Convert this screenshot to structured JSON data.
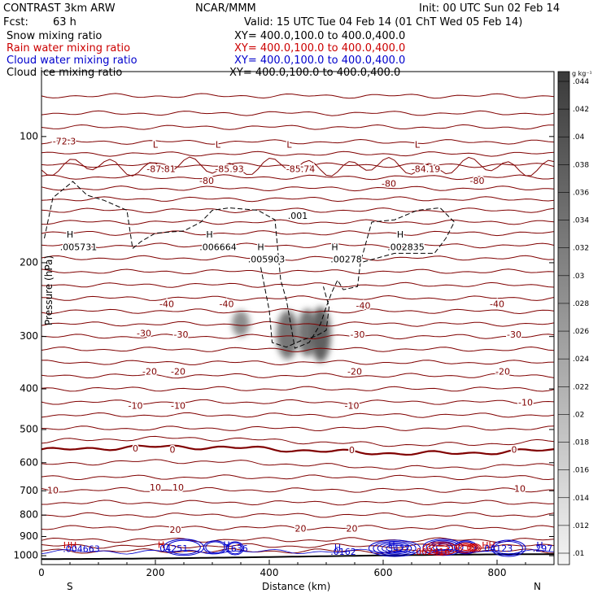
{
  "header": {
    "model": "CONTRAST  3km ARW",
    "org": "NCAR/MMM",
    "init": "Init: 00 UTC Sun 02 Feb 14",
    "fcst_label": "Fcst:",
    "fcst_value": "63 h",
    "valid": "Valid: 15 UTC Tue 04 Feb 14 (01 ChT Wed 05 Feb 14)"
  },
  "fields": [
    {
      "label": "Snow mixing ratio",
      "xy": "XY= 400.0,100.0 to 400.0,400.0",
      "color": "#000000"
    },
    {
      "label": "Rain water mixing ratio",
      "xy": "XY= 400.0,100.0 to 400.0,400.0",
      "color": "#cc0000"
    },
    {
      "label": "Cloud water mixing ratio",
      "xy": "XY= 400.0,100.0 to 400.0,400.0",
      "color": "#0000cc"
    },
    {
      "label": "Cloud ice mixing ratio",
      "xy": "XY= 400.0,100.0 to 400.0,400.0",
      "color": "#000000"
    }
  ],
  "colors": {
    "temperature": "#800000",
    "cloud_water": "#0000cc",
    "rain": "#cc0000",
    "cloud_ice": "#000000"
  },
  "chart_data": {
    "type": "cross-section contour",
    "xlabel": "Distance (km)",
    "ylabel": "Pressure (hPa)",
    "xlim": [
      0,
      900
    ],
    "ylim": [
      1050,
      70
    ],
    "y_log_scale": true,
    "x_ticks": [
      "0",
      "200",
      "400",
      "600",
      "800"
    ],
    "y_ticks": [
      "100",
      "200",
      "300",
      "400",
      "500",
      "600",
      "700",
      "800",
      "900",
      "1000"
    ],
    "x_end_labels": {
      "left": "S",
      "right": "N"
    },
    "colorbar": {
      "unit": "g kg⁻¹",
      "ticks": [
        ".01",
        ".012",
        ".014",
        ".016",
        ".018",
        ".02",
        ".022",
        ".024",
        ".026",
        ".028",
        ".03",
        ".032",
        ".034",
        ".036",
        ".038",
        ".04",
        ".042",
        ".044"
      ]
    },
    "temperature_labels": [
      {
        "text": "-72.3",
        "x": 40,
        "p": 103
      },
      {
        "text": "L",
        "x": 200,
        "p": 105
      },
      {
        "text": "-87.81",
        "x": 210,
        "p": 120
      },
      {
        "text": "-80",
        "x": 290,
        "p": 128
      },
      {
        "text": "L",
        "x": 310,
        "p": 105
      },
      {
        "text": "-85.93",
        "x": 330,
        "p": 120
      },
      {
        "text": "L",
        "x": 435,
        "p": 105
      },
      {
        "text": "-85.74",
        "x": 455,
        "p": 120
      },
      {
        "text": "-80",
        "x": 610,
        "p": 130
      },
      {
        "text": "L",
        "x": 660,
        "p": 105
      },
      {
        "text": "-84.19",
        "x": 675,
        "p": 120
      },
      {
        "text": "-80",
        "x": 765,
        "p": 128
      },
      {
        "text": "-40",
        "x": 220,
        "p": 252
      },
      {
        "text": "-40",
        "x": 325,
        "p": 252
      },
      {
        "text": "-40",
        "x": 565,
        "p": 254
      },
      {
        "text": "-40",
        "x": 800,
        "p": 252
      },
      {
        "text": "-30",
        "x": 180,
        "p": 296
      },
      {
        "text": "-30",
        "x": 245,
        "p": 298
      },
      {
        "text": "-30",
        "x": 555,
        "p": 298
      },
      {
        "text": "-30",
        "x": 830,
        "p": 298
      },
      {
        "text": "-20",
        "x": 190,
        "p": 365
      },
      {
        "text": "-20",
        "x": 240,
        "p": 365
      },
      {
        "text": "-20",
        "x": 550,
        "p": 365
      },
      {
        "text": "-20",
        "x": 810,
        "p": 365
      },
      {
        "text": "-10",
        "x": 165,
        "p": 440
      },
      {
        "text": "-10",
        "x": 240,
        "p": 440
      },
      {
        "text": "-10",
        "x": 545,
        "p": 440
      },
      {
        "text": "-10",
        "x": 850,
        "p": 432
      },
      {
        "text": "0",
        "x": 165,
        "p": 557
      },
      {
        "text": "0",
        "x": 230,
        "p": 560
      },
      {
        "text": "0",
        "x": 545,
        "p": 562
      },
      {
        "text": "0",
        "x": 830,
        "p": 560
      },
      {
        "text": "10",
        "x": 20,
        "p": 700
      },
      {
        "text": "10",
        "x": 200,
        "p": 690
      },
      {
        "text": "10",
        "x": 240,
        "p": 690
      },
      {
        "text": "10",
        "x": 840,
        "p": 695
      },
      {
        "text": "20",
        "x": 235,
        "p": 870
      },
      {
        "text": "20",
        "x": 455,
        "p": 865
      },
      {
        "text": "20",
        "x": 545,
        "p": 865
      }
    ],
    "ice_labels": [
      {
        "text": "H",
        "x": 50,
        "p": 172
      },
      {
        "text": ".005731",
        "x": 65,
        "p": 184
      },
      {
        "text": ".001",
        "x": 450,
        "p": 155
      },
      {
        "text": "H",
        "x": 295,
        "p": 172
      },
      {
        "text": ".006664",
        "x": 310,
        "p": 184
      },
      {
        "text": "H",
        "x": 385,
        "p": 184
      },
      {
        "text": ".005903",
        "x": 395,
        "p": 197
      },
      {
        "text": "H",
        "x": 515,
        "p": 184
      },
      {
        "text": ".00278",
        "x": 535,
        "p": 197
      },
      {
        "text": "H",
        "x": 630,
        "p": 172
      },
      {
        "text": ".002835",
        "x": 640,
        "p": 184
      }
    ],
    "low_level_labels": [
      {
        "text": "HH",
        "x": 50,
        "p": 948,
        "series": "rain"
      },
      {
        "text": ".004663",
        "x": 70,
        "p": 967,
        "series": "cloud_water"
      },
      {
        "text": "H",
        "x": 210,
        "p": 945,
        "series": "rain"
      },
      {
        "text": ".04251",
        "x": 230,
        "p": 965,
        "series": "cloud_water"
      },
      {
        "text": "H",
        "x": 325,
        "p": 945,
        "series": "cloud_water"
      },
      {
        "text": ".1636",
        "x": 340,
        "p": 965,
        "series": "cloud_water"
      },
      {
        "text": "H",
        "x": 520,
        "p": 960,
        "series": "cloud_water"
      },
      {
        "text": ".0162",
        "x": 530,
        "p": 982,
        "series": "cloud_water"
      },
      {
        "text": "H",
        "x": 615,
        "p": 948,
        "series": "cloud_water"
      },
      {
        "text": ".3427",
        "x": 625,
        "p": 965,
        "series": "cloud_water"
      },
      {
        "text": ".002416",
        "x": 685,
        "p": 982,
        "series": "rain"
      },
      {
        "text": "HH",
        "x": 785,
        "p": 948,
        "series": "rain"
      },
      {
        "text": ".04123",
        "x": 800,
        "p": 965,
        "series": "cloud_water"
      },
      {
        "text": "H",
        "x": 875,
        "p": 948,
        "series": "cloud_water"
      },
      {
        "text": ".297",
        "x": 880,
        "p": 965,
        "series": "cloud_water"
      }
    ],
    "snow_blobs": [
      {
        "x": 350,
        "p": 278,
        "dx": 12,
        "dp_top": 260,
        "dp_bot": 300,
        "value": 0.03
      },
      {
        "x": 432,
        "p": 295,
        "dx": 15,
        "dp_top": 260,
        "dp_bot": 340,
        "value": 0.034
      },
      {
        "x": 467,
        "p": 290,
        "dx": 14,
        "dp_top": 258,
        "dp_bot": 335,
        "value": 0.034
      },
      {
        "x": 490,
        "p": 295,
        "dx": 14,
        "dp_top": 255,
        "dp_bot": 345,
        "value": 0.038
      }
    ],
    "temperature_lines_p": [
      80,
      88,
      95,
      103,
      110,
      117,
      125,
      133,
      141,
      150,
      160,
      170,
      182,
      195,
      210,
      226,
      243,
      261,
      280,
      300,
      322,
      346,
      372,
      400,
      430,
      462,
      497,
      534,
      560,
      606,
      650,
      697,
      747,
      800,
      857,
      917,
      948,
      975
    ],
    "surface_p": 1005
  }
}
